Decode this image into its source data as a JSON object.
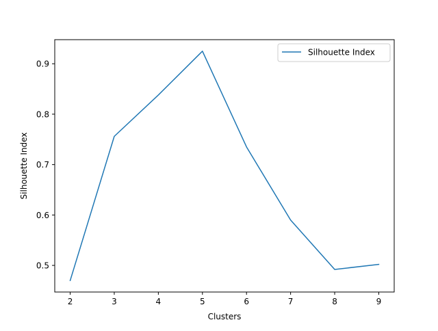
{
  "chart_data": {
    "type": "line",
    "title": "",
    "xlabel": "Clusters",
    "ylabel": "Silhouette Index",
    "x": [
      2,
      3,
      4,
      5,
      6,
      7,
      8,
      9
    ],
    "xlim": [
      1.65,
      9.35
    ],
    "ylim": [
      0.4472,
      0.9478
    ],
    "xticks": [
      2,
      3,
      4,
      5,
      6,
      7,
      8,
      9
    ],
    "yticks": [
      0.5,
      0.6,
      0.7,
      0.8,
      0.9
    ],
    "ytick_labels": [
      "0.5",
      "0.6",
      "0.7",
      "0.8",
      "0.9"
    ],
    "grid": false,
    "legend_position": "upper right",
    "series": [
      {
        "name": "Silhouette Index",
        "color": "#1f77b4",
        "values": [
          0.47,
          0.756,
          0.838,
          0.925,
          0.735,
          0.59,
          0.492,
          0.502
        ]
      }
    ]
  }
}
